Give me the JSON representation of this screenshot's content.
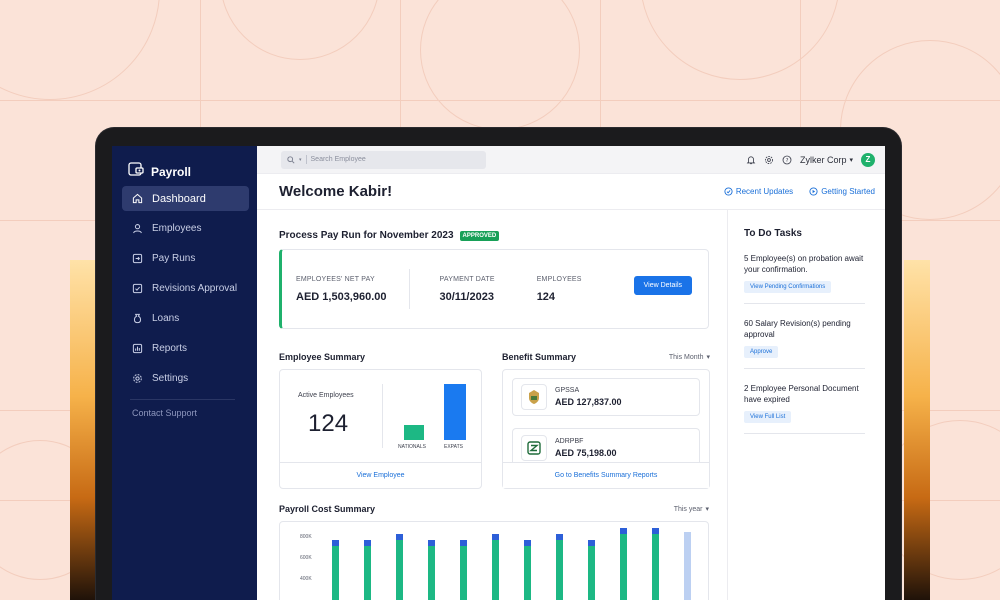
{
  "app": {
    "name": "Payroll"
  },
  "sidebar": {
    "items": [
      {
        "label": "Dashboard",
        "icon": "home-icon"
      },
      {
        "label": "Employees",
        "icon": "user-icon"
      },
      {
        "label": "Pay Runs",
        "icon": "pay-runs-icon"
      },
      {
        "label": "Revisions Approval",
        "icon": "checklist-icon"
      },
      {
        "label": "Loans",
        "icon": "money-bag-icon"
      },
      {
        "label": "Reports",
        "icon": "bar-chart-icon"
      },
      {
        "label": "Settings",
        "icon": "gear-icon"
      }
    ],
    "contact": "Contact Support"
  },
  "topbar": {
    "search_placeholder": "Search Employee",
    "org": "Zylker Corp",
    "avatar_letter": "Z"
  },
  "header": {
    "welcome": "Welcome Kabir!",
    "recent_updates": "Recent Updates",
    "getting_started": "Getting Started"
  },
  "payrun": {
    "title": "Process Pay Run for November 2023",
    "status": "APPROVED",
    "net_pay_label": "EMPLOYEES' NET PAY",
    "net_pay": "AED 1,503,960.00",
    "payment_date_label": "PAYMENT DATE",
    "payment_date": "30/11/2023",
    "employees_label": "EMPLOYEES",
    "employees": "124",
    "button": "View Details"
  },
  "employee_summary": {
    "title": "Employee Summary",
    "active_label": "Active Employees",
    "active_count": "124",
    "nationals_label": "NATIONALS",
    "expats_label": "EXPATS",
    "link": "View Employee"
  },
  "benefit_summary": {
    "title": "Benefit Summary",
    "period": "This Month",
    "items": [
      {
        "name": "GPSSA",
        "value": "AED 127,837.00"
      },
      {
        "name": "ADRPBF",
        "value": "AED 75,198.00"
      }
    ],
    "link": "Go to Benefits Summary Reports"
  },
  "payroll_cost": {
    "title": "Payroll Cost Summary",
    "period": "This year",
    "yticks": [
      "800K",
      "600K",
      "400K"
    ]
  },
  "todo": {
    "title": "To Do Tasks",
    "tasks": [
      {
        "text": "5 Employee(s) on probation await your confirmation.",
        "action": "View Pending Confirmations"
      },
      {
        "text": "60 Salary Revision(s) pending approval",
        "action": "Approve"
      },
      {
        "text": "2 Employee Personal Document have expired",
        "action": "View Full List"
      }
    ]
  },
  "colors": {
    "sidebar_bg": "#0f1c4d",
    "accent": "#1a73e8",
    "success": "#18a058",
    "chart_green": "#1db884",
    "chart_blue": "#2d5fd8"
  }
}
